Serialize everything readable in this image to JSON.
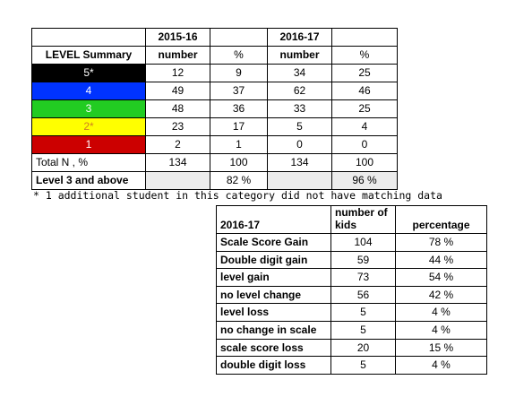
{
  "level_summary": {
    "headers": {
      "col1": "2015-16",
      "col2": "",
      "col3": "2016-17",
      "col4": "",
      "row_label": "LEVEL Summary",
      "sub1": "number",
      "sub2": "%",
      "sub3": "number",
      "sub4": "%"
    },
    "levels": [
      {
        "label": "5*",
        "bg": "#000000",
        "fg": "#ffffff",
        "n1": "12",
        "p1": "9",
        "n2": "34",
        "p2": "25"
      },
      {
        "label": "4",
        "bg": "#0033ff",
        "fg": "#ffffff",
        "n1": "49",
        "p1": "37",
        "n2": "62",
        "p2": "46"
      },
      {
        "label": "3",
        "bg": "#22cc22",
        "fg": "#ffffff",
        "n1": "48",
        "p1": "36",
        "n2": "33",
        "p2": "25"
      },
      {
        "label": "2*",
        "bg": "#ffff00",
        "fg": "#d08020",
        "n1": "23",
        "p1": "17",
        "n2": "5",
        "p2": "4"
      },
      {
        "label": "1",
        "bg": "#cc0000",
        "fg": "#ffffff",
        "n1": "2",
        "p1": "1",
        "n2": "0",
        "p2": "0"
      }
    ],
    "total": {
      "label": "Total N , %",
      "n1": "134",
      "p1": "100",
      "n2": "134",
      "p2": "100"
    },
    "level3": {
      "label": "Level 3 and above",
      "p1": "82 %",
      "p2": "96 %"
    }
  },
  "note": "* 1 additional student in this category did not have matching data",
  "gain_table": {
    "headers": {
      "label": "2016-17",
      "count": "number of kids",
      "pct": "percentage"
    },
    "rows": [
      {
        "label": "Scale Score Gain",
        "count": "104",
        "pct": "78 %"
      },
      {
        "label": "Double digit gain",
        "count": "59",
        "pct": "44 %"
      },
      {
        "label": "level gain",
        "count": "73",
        "pct": "54 %"
      },
      {
        "label": "no level change",
        "count": "56",
        "pct": "42 %"
      },
      {
        "label": "level loss",
        "count": "5",
        "pct": "4 %"
      },
      {
        "label": "no change in scale",
        "count": "5",
        "pct": "4 %"
      },
      {
        "label": "scale score loss",
        "count": "20",
        "pct": "15 %"
      },
      {
        "label": "double digit loss",
        "count": "5",
        "pct": "4 %"
      }
    ]
  }
}
